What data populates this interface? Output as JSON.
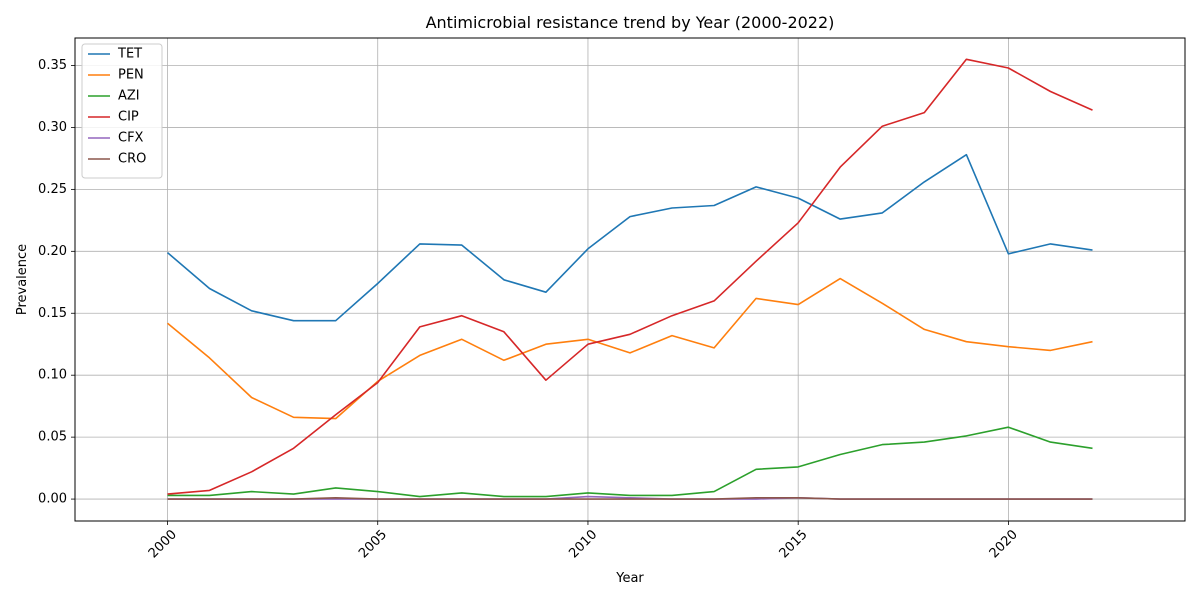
{
  "chart_data": {
    "type": "line",
    "title": "Antimicrobial resistance trend by Year (2000-2022)",
    "xlabel": "Year",
    "ylabel": "Prevalence",
    "x": [
      2000,
      2001,
      2002,
      2003,
      2004,
      2005,
      2006,
      2007,
      2008,
      2009,
      2010,
      2011,
      2012,
      2013,
      2014,
      2015,
      2016,
      2017,
      2018,
      2019,
      2020,
      2021,
      2022
    ],
    "xlim": [
      1997.8,
      2024.2
    ],
    "ylim": [
      -0.0177,
      0.3722
    ],
    "x_ticks": [
      2000,
      2005,
      2010,
      2015,
      2020
    ],
    "y_ticks": [
      0.0,
      0.05,
      0.1,
      0.15,
      0.2,
      0.25,
      0.3,
      0.35
    ],
    "y_tick_labels": [
      "0.00",
      "0.05",
      "0.10",
      "0.15",
      "0.20",
      "0.25",
      "0.30",
      "0.35"
    ],
    "grid": true,
    "legend_position": "top-left",
    "series": [
      {
        "name": "TET",
        "color": "#1f77b4",
        "values": [
          0.199,
          0.17,
          0.152,
          0.144,
          0.144,
          0.174,
          0.206,
          0.205,
          0.177,
          0.167,
          0.202,
          0.228,
          0.235,
          0.237,
          0.252,
          0.243,
          0.226,
          0.231,
          0.256,
          0.278,
          0.198,
          0.206,
          0.201
        ]
      },
      {
        "name": "PEN",
        "color": "#ff7f0e",
        "values": [
          0.142,
          0.114,
          0.082,
          0.066,
          0.065,
          0.095,
          0.116,
          0.129,
          0.112,
          0.125,
          0.129,
          0.118,
          0.132,
          0.122,
          0.162,
          0.157,
          0.178,
          0.158,
          0.137,
          0.127,
          0.123,
          0.12,
          0.127
        ]
      },
      {
        "name": "AZI",
        "color": "#2ca02c",
        "values": [
          0.003,
          0.003,
          0.006,
          0.004,
          0.009,
          0.006,
          0.002,
          0.005,
          0.002,
          0.002,
          0.005,
          0.003,
          0.003,
          0.006,
          0.024,
          0.026,
          0.036,
          0.044,
          0.046,
          0.051,
          0.058,
          0.046,
          0.041
        ]
      },
      {
        "name": "CIP",
        "color": "#d62728",
        "values": [
          0.004,
          0.007,
          0.022,
          0.041,
          0.068,
          0.094,
          0.139,
          0.148,
          0.135,
          0.096,
          0.125,
          0.133,
          0.148,
          0.16,
          0.192,
          0.223,
          0.268,
          0.301,
          0.312,
          0.355,
          0.348,
          0.329,
          0.314
        ]
      },
      {
        "name": "CFX",
        "color": "#9467bd",
        "values": [
          0.0,
          0.0,
          0.0,
          0.0,
          0.0,
          0.0,
          0.0,
          0.0,
          0.0,
          0.0,
          0.002,
          0.001,
          0.0,
          0.0,
          0.0,
          0.001,
          0.0,
          0.0,
          0.0,
          0.0,
          0.0,
          0.0,
          0.0
        ]
      },
      {
        "name": "CRO",
        "color": "#8c564b",
        "values": [
          0.0,
          0.0,
          0.0,
          0.0,
          0.001,
          0.0,
          0.0,
          0.0,
          0.0,
          0.0,
          0.0,
          0.0,
          0.0,
          0.0,
          0.001,
          0.001,
          0.0,
          0.0,
          0.0,
          0.0,
          0.0,
          0.0,
          0.0
        ]
      }
    ]
  }
}
